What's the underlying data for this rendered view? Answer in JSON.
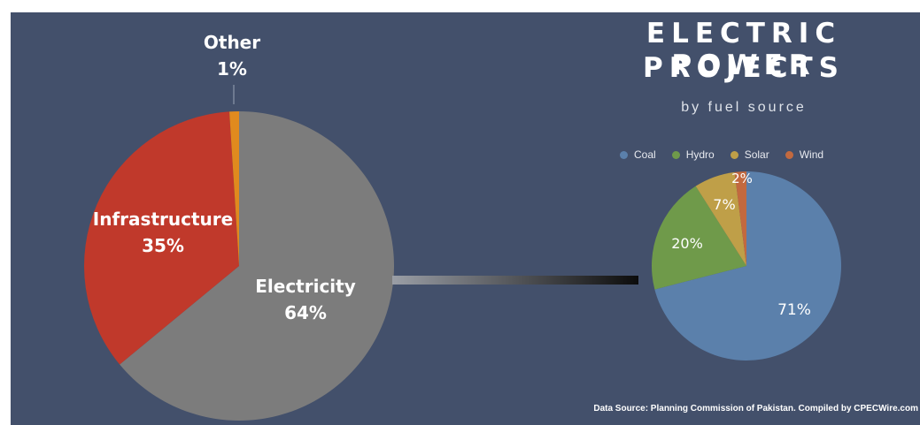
{
  "chart_data": [
    {
      "type": "pie",
      "slices": [
        {
          "label": "Electricity",
          "value": 64,
          "value_label": "64%",
          "color": "#7c7c7c"
        },
        {
          "label": "Infrastructure",
          "value": 35,
          "value_label": "35%",
          "color": "#c0392b"
        },
        {
          "label": "Other",
          "value": 1,
          "value_label": "1%",
          "color": "#e08a1e"
        }
      ]
    },
    {
      "type": "pie",
      "title": "ELECTRIC POWER PROJECTS",
      "title_lines": [
        "ELECTRIC POWER",
        "PROJECTS"
      ],
      "subtitle": "by fuel source",
      "legend_position": "top",
      "slices": [
        {
          "label": "Coal",
          "value": 71,
          "value_label": "71%",
          "color": "#5b80ab"
        },
        {
          "label": "Hydro",
          "value": 20,
          "value_label": "20%",
          "color": "#6f9a4a"
        },
        {
          "label": "Solar",
          "value": 7,
          "value_label": "7%",
          "color": "#bf9f48"
        },
        {
          "label": "Wind",
          "value": 2,
          "value_label": "2%",
          "color": "#c2693f"
        }
      ]
    }
  ],
  "source_text": "Data Source: Planning Commission of Pakistan. Compiled by CPECWire.com"
}
